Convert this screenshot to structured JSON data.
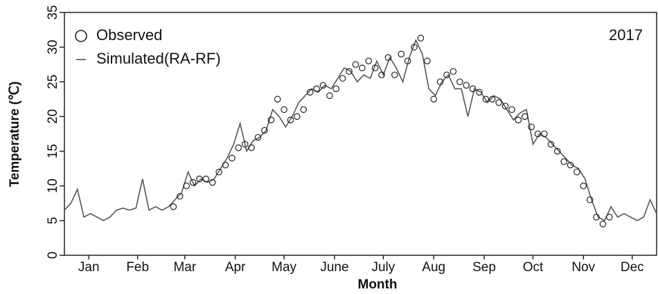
{
  "chart_data": {
    "type": "line",
    "x_label": "Month",
    "y_label": "Temperature (℃)",
    "annotation": "2017",
    "xlim": [
      1,
      365
    ],
    "xticks": [
      {
        "value": 16,
        "label": "Jan"
      },
      {
        "value": 46,
        "label": "Feb"
      },
      {
        "value": 75,
        "label": "Mar"
      },
      {
        "value": 106,
        "label": "Apr"
      },
      {
        "value": 136,
        "label": "May"
      },
      {
        "value": 167,
        "label": "June"
      },
      {
        "value": 197,
        "label": "July"
      },
      {
        "value": 228,
        "label": "Aug"
      },
      {
        "value": 259,
        "label": "Sep"
      },
      {
        "value": 289,
        "label": "Oct"
      },
      {
        "value": 320,
        "label": "Nov"
      },
      {
        "value": 350,
        "label": "Dec"
      }
    ],
    "ylim": [
      0,
      35
    ],
    "yticks": [
      0,
      5,
      10,
      15,
      20,
      25,
      30,
      35
    ],
    "legend": "upper left",
    "series": [
      {
        "name": "Observed",
        "style": "marker",
        "color": "#222222",
        "x": [
          68,
          72,
          76,
          80,
          84,
          88,
          92,
          96,
          100,
          104,
          108,
          112,
          116,
          120,
          124,
          128,
          132,
          136,
          140,
          144,
          148,
          152,
          156,
          160,
          164,
          168,
          172,
          176,
          180,
          184,
          188,
          192,
          196,
          200,
          204,
          208,
          212,
          216,
          220,
          224,
          228,
          232,
          236,
          240,
          244,
          248,
          252,
          256,
          260,
          264,
          268,
          272,
          276,
          280,
          284,
          288,
          292,
          296,
          300,
          304,
          308,
          312,
          316,
          320,
          324,
          328,
          332,
          336
        ],
        "values": [
          7,
          8.5,
          10,
          10.5,
          11,
          11,
          10.5,
          12,
          13,
          14,
          15.5,
          16,
          15.5,
          17,
          18,
          19.5,
          22.5,
          21,
          19.5,
          20,
          21,
          23.5,
          24,
          24.5,
          23,
          24,
          25.5,
          26.5,
          27.5,
          27,
          28,
          27,
          26,
          28.5,
          26,
          29,
          28,
          30,
          31.3,
          28,
          22.5,
          25,
          26,
          26.5,
          25,
          24.5,
          24,
          23.5,
          22.5,
          22.5,
          22,
          21.5,
          21,
          19.5,
          20,
          18.5,
          17.5,
          17.5,
          16,
          15,
          13.5,
          13,
          12,
          10,
          8,
          5.5,
          4.5,
          5.5
        ]
      },
      {
        "name": "Simulated(RA-RF)",
        "style": "line",
        "color": "#555555",
        "x": [
          1,
          5,
          9,
          13,
          17,
          21,
          25,
          29,
          33,
          37,
          41,
          45,
          49,
          53,
          57,
          61,
          65,
          69,
          73,
          77,
          81,
          85,
          89,
          93,
          97,
          101,
          105,
          109,
          113,
          117,
          121,
          125,
          129,
          133,
          137,
          141,
          145,
          149,
          153,
          157,
          161,
          165,
          169,
          173,
          177,
          181,
          185,
          189,
          193,
          197,
          201,
          205,
          209,
          213,
          217,
          221,
          225,
          229,
          233,
          237,
          241,
          245,
          249,
          253,
          257,
          261,
          265,
          269,
          273,
          277,
          281,
          285,
          289,
          293,
          297,
          301,
          305,
          309,
          313,
          317,
          321,
          325,
          329,
          333,
          337,
          341,
          345,
          349,
          353,
          357,
          361,
          365
        ],
        "values": [
          6.5,
          7.5,
          9.5,
          5.5,
          6,
          5.5,
          5,
          5.5,
          6.5,
          6.8,
          6.5,
          6.8,
          11,
          6.5,
          7,
          6.5,
          7,
          8,
          9,
          12,
          10,
          11,
          10.5,
          11,
          12.5,
          14,
          16,
          19,
          15,
          16.5,
          17,
          18,
          21,
          20,
          18.5,
          20,
          22,
          23,
          24,
          23.5,
          24.5,
          24,
          25.5,
          27,
          26.5,
          25,
          26,
          25.5,
          28,
          26,
          28.5,
          27,
          25,
          28.5,
          31,
          29,
          24,
          23,
          25,
          26,
          24,
          24,
          20,
          24,
          23.5,
          22,
          23,
          22.5,
          21,
          19.5,
          20.5,
          21,
          16,
          17.5,
          17,
          16,
          15,
          14,
          13,
          12.5,
          11,
          8,
          5.5,
          5,
          7,
          5.5,
          6,
          5.5,
          5,
          5.5,
          8,
          6
        ]
      }
    ]
  }
}
